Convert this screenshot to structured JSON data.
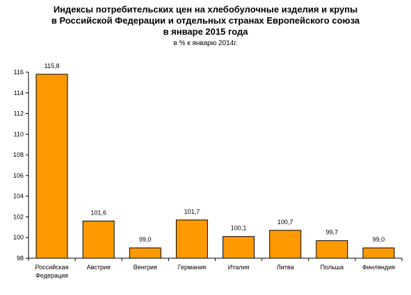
{
  "chart_data": {
    "type": "bar",
    "title": [
      "Индексы потребительских цен на хлебобулочные изделия и крупы",
      "в Российской Федерации и отдельных странах Европейского союза",
      "в январе 2015 года"
    ],
    "subtitle": "в % к январю 2014г.",
    "categories": [
      [
        "Российская",
        "Федерация"
      ],
      [
        "Австрия"
      ],
      [
        "Венгрия"
      ],
      [
        "Германия"
      ],
      [
        "Италия"
      ],
      [
        "Литва"
      ],
      [
        "Польша"
      ],
      [
        "Финляндия"
      ]
    ],
    "values": [
      115.8,
      101.6,
      99.0,
      101.7,
      100.1,
      100.7,
      99.7,
      99.0
    ],
    "value_labels": [
      "115,8",
      "101,6",
      "99,0",
      "101,7",
      "100,1",
      "100,7",
      "99,7",
      "99,0"
    ],
    "ylim": [
      98,
      116
    ],
    "yticks": [
      98,
      100,
      102,
      104,
      106,
      108,
      110,
      112,
      114,
      116
    ],
    "xlabel": "",
    "ylabel": "",
    "grid": false,
    "legend": "none",
    "colors": {
      "bar_fill": "#FF9900",
      "bar_stroke": "#000000",
      "axis": "#000000"
    }
  }
}
